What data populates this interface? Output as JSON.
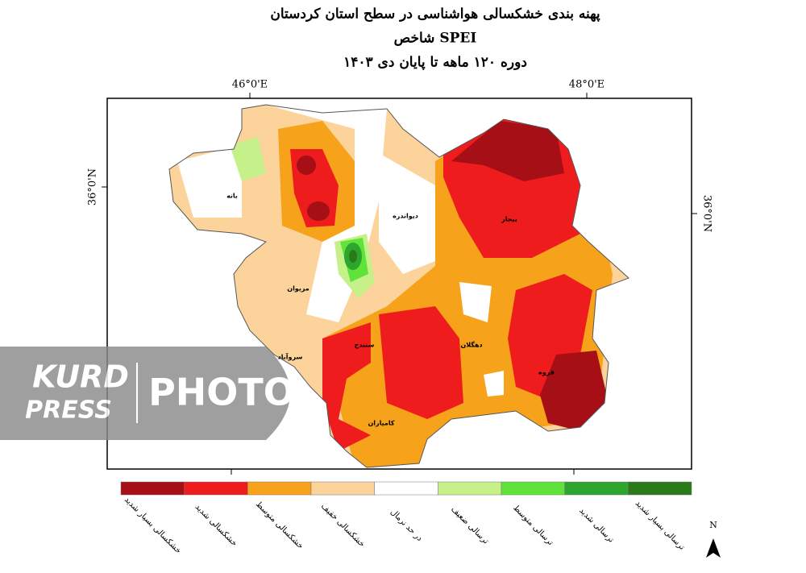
{
  "header": {
    "title": "پهنه بندی خشکسالی هواشناسی در سطح استان کردستان",
    "subtitle": "شاخص SPEI",
    "period": "دوره ۱۲۰ ماهه تا پایان دی ۱۴۰۳"
  },
  "axes": {
    "top": [
      "46°0'E",
      "48°0'E"
    ],
    "left": "36°0'N",
    "right": "36°0'N"
  },
  "cities": [
    "بانه",
    "دیواندره",
    "بیجار",
    "مریوان",
    "سروآباد",
    "سنندج",
    "دهگلان",
    "قروه",
    "کامیاران"
  ],
  "legend": [
    {
      "label": "خشکسالی بسیار شدید",
      "color": "#a50f15"
    },
    {
      "label": "خشکسالی شدید",
      "color": "#ee1c1c"
    },
    {
      "label": "خشکسالی متوسط",
      "color": "#f7a21b"
    },
    {
      "label": "خشکسالی خفیف",
      "color": "#fcd39a"
    },
    {
      "label": "در حد نرمال",
      "color": "#ffffff"
    },
    {
      "label": "ترسالی ضعیف",
      "color": "#c6f08a"
    },
    {
      "label": "ترسالی متوسط",
      "color": "#5fe33a"
    },
    {
      "label": "ترسالی شدید",
      "color": "#2ea52e"
    },
    {
      "label": "ترسالی بسیار شدید",
      "color": "#2b7a1a"
    }
  ],
  "north": "N",
  "watermark": {
    "brand_top": "KURD",
    "brand_bottom": "PRESS",
    "word": "PHOTO"
  }
}
